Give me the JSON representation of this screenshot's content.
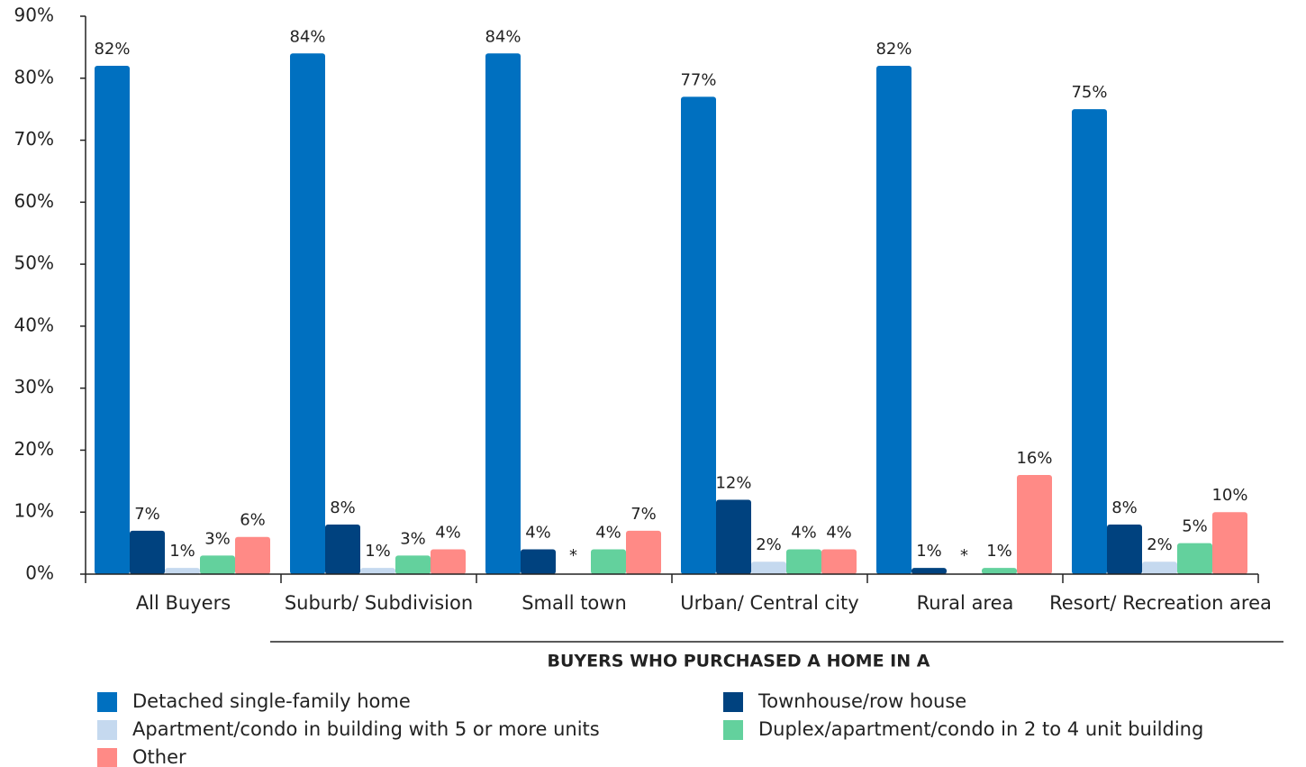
{
  "chart_data": {
    "type": "bar",
    "x_group_label": "BUYERS WHO PURCHASED A HOME IN A",
    "categories": [
      "All Buyers",
      "Suburb/ Subdivision",
      "Small town",
      "Urban/ Central city",
      "Rural area",
      "Resort/ Recreation area"
    ],
    "series": [
      {
        "name": "Detached single-family home",
        "color": "#0070c0",
        "values": [
          82,
          84,
          84,
          77,
          82,
          75
        ],
        "value_labels": [
          "82%",
          "84%",
          "84%",
          "77%",
          "82%",
          "75%"
        ]
      },
      {
        "name": "Townhouse/row house",
        "color": "#00427f",
        "values": [
          7,
          8,
          4,
          12,
          1,
          8
        ],
        "value_labels": [
          "7%",
          "8%",
          "4%",
          "12%",
          "1%",
          "8%"
        ]
      },
      {
        "name": "Apartment/condo in building with 5 or more units",
        "color": "#c5d9ef",
        "values": [
          1,
          1,
          null,
          2,
          null,
          2
        ],
        "value_labels": [
          "1%",
          "1%",
          "*",
          "2%",
          "*",
          "2%"
        ]
      },
      {
        "name": "Duplex/apartment/condo in 2 to 4 unit building",
        "color": "#63d19d",
        "values": [
          3,
          3,
          4,
          4,
          1,
          5
        ],
        "value_labels": [
          "3%",
          "3%",
          "4%",
          "4%",
          "1%",
          "5%"
        ]
      },
      {
        "name": "Other",
        "color": "#ff8a86",
        "values": [
          6,
          4,
          7,
          4,
          16,
          10
        ],
        "value_labels": [
          "6%",
          "4%",
          "7%",
          "4%",
          "16%",
          "10%"
        ]
      }
    ],
    "ylim": [
      0,
      90
    ],
    "yticks": [
      {
        "value": 0,
        "label": "0%"
      },
      {
        "value": 10,
        "label": "10%"
      },
      {
        "value": 20,
        "label": "20%"
      },
      {
        "value": 30,
        "label": "30%"
      },
      {
        "value": 40,
        "label": "40%"
      },
      {
        "value": 50,
        "label": "50%"
      },
      {
        "value": 60,
        "label": "60%"
      },
      {
        "value": 70,
        "label": "70%"
      },
      {
        "value": 80,
        "label": "80%"
      },
      {
        "value": 90,
        "label": "90%"
      }
    ],
    "grid": false
  }
}
